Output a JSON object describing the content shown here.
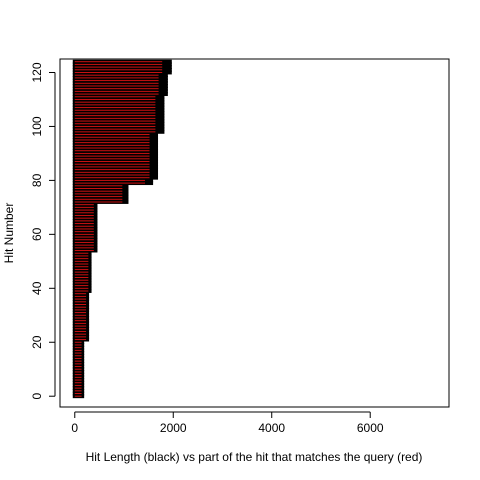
{
  "chart_data": {
    "type": "bar",
    "subtype": "horizontal-segments",
    "xlabel": "Hit Length (black) vs part of the hit that matches the query (red)",
    "ylabel": "Hit Number",
    "xlim": [
      -300,
      7600
    ],
    "ylim": [
      -4,
      125
    ],
    "x_ticks": [
      0,
      2000,
      4000,
      6000
    ],
    "x_tick_labels": [
      "0",
      "2000",
      "4000",
      "6000"
    ],
    "y_ticks": [
      0,
      20,
      40,
      60,
      80,
      100,
      120
    ],
    "y_tick_labels": [
      "0",
      "20",
      "40",
      "60",
      "80",
      "100",
      "120"
    ],
    "grid": false,
    "legend": "none",
    "colors": {
      "hit_length": "#000000",
      "match": "#cc1111"
    },
    "hit_length_steps": [
      {
        "from_hit": 0,
        "to_hit": 20,
        "start": 0,
        "end": 150
      },
      {
        "from_hit": 21,
        "to_hit": 38,
        "start": 0,
        "end": 250
      },
      {
        "from_hit": 39,
        "to_hit": 53,
        "start": 0,
        "end": 300
      },
      {
        "from_hit": 54,
        "to_hit": 71,
        "start": 0,
        "end": 420
      },
      {
        "from_hit": 72,
        "to_hit": 78,
        "start": 0,
        "end": 1050
      },
      {
        "from_hit": 79,
        "to_hit": 80,
        "start": 0,
        "end": 1550
      },
      {
        "from_hit": 81,
        "to_hit": 97,
        "start": 0,
        "end": 1650
      },
      {
        "from_hit": 98,
        "to_hit": 111,
        "start": 0,
        "end": 1780
      },
      {
        "from_hit": 112,
        "to_hit": 119,
        "start": 0,
        "end": 1850
      },
      {
        "from_hit": 120,
        "to_hit": 124,
        "start": 0,
        "end": 1930
      }
    ],
    "match_pattern": {
      "hits_from": 0,
      "hits_to": 124,
      "match_start": 0,
      "match_fraction_of_hit_length": 0.92
    }
  }
}
